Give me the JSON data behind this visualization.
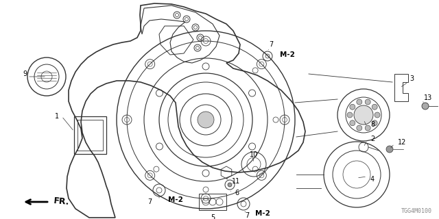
{
  "bg_color": "#ffffff",
  "diagram_code": "TGG4M0100",
  "line_color": "#333333",
  "text_color": "#000000",
  "label_fontsize": 7.0,
  "m2_fontsize": 7.5,
  "code_fontsize": 6.0,
  "fig_width": 6.4,
  "fig_height": 3.2,
  "dpi": 100
}
